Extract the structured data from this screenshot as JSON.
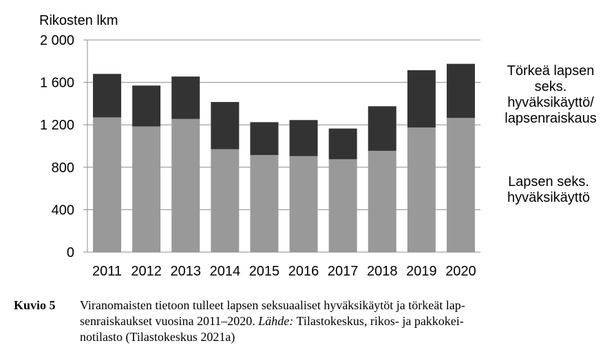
{
  "chart_data": {
    "type": "bar",
    "stacked": true,
    "categories": [
      "2011",
      "2012",
      "2013",
      "2014",
      "2015",
      "2016",
      "2017",
      "2018",
      "2019",
      "2020"
    ],
    "series": [
      {
        "name": "Lapsen seks. hyväksikäyttö",
        "values": [
          1270,
          1185,
          1255,
          970,
          915,
          905,
          875,
          955,
          1175,
          1265
        ],
        "color": "#999999"
      },
      {
        "name": "Törkeä lapsen seks. hyväksikäyttö/ lapsenraiskaus",
        "values": [
          410,
          385,
          400,
          445,
          310,
          340,
          290,
          420,
          540,
          510
        ],
        "color": "#333333"
      }
    ],
    "ylabel": "Rikosten lkm",
    "ylim": [
      0,
      2000
    ],
    "yticks": [
      "0",
      "400",
      "800",
      "1 200",
      "1 600",
      "2 000"
    ],
    "ytick_values": [
      0,
      400,
      800,
      1200,
      1600,
      2000
    ],
    "grid": true,
    "legend_position": "right",
    "legend_lines": {
      "top": [
        "Törkeä lapsen",
        "seks.",
        "hyväksikäyttö/",
        "lapsenraiskaus"
      ],
      "bottom": [
        "Lapsen seks.",
        "hyväksikäyttö"
      ]
    }
  },
  "caption": {
    "label": "Kuvio 5",
    "lines": [
      "Viranomaisten tietoon tulleet lapsen seksuaaliset hyväksikäytöt ja törkeät lap-",
      "senraiskaukset vuosina 2011–2020.",
      " Tilastokeskus, rikos- ja pakkokei-",
      "notilasto (Tilastokeskus 2021a)"
    ],
    "source_label": "Lähde:"
  }
}
